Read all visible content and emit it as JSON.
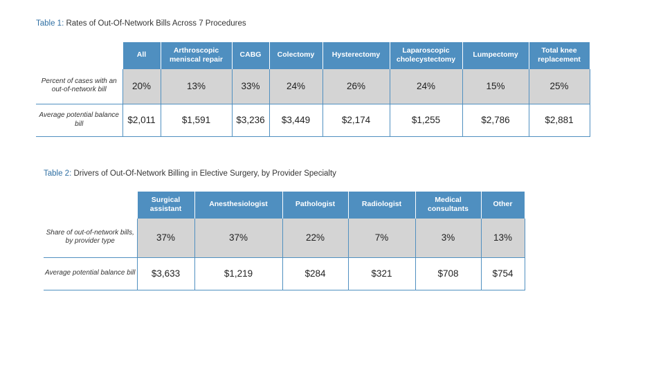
{
  "table1": {
    "caption_num": "Table 1:",
    "caption_text": "Rates of Out-Of-Network Bills Across 7 Procedures",
    "headers": [
      "All",
      "Arthroscopic meniscal repair",
      "CABG",
      "Colectomy",
      "Hysterectomy",
      "Laparoscopic cholecystectomy",
      "Lumpectomy",
      "Total knee replacement"
    ],
    "rows": [
      {
        "label": "Percent of cases with an out-of-network bill",
        "values": [
          "20%",
          "13%",
          "33%",
          "24%",
          "26%",
          "24%",
          "15%",
          "25%"
        ]
      },
      {
        "label": "Average potential balance bill",
        "values": [
          "$2,011",
          "$1,591",
          "$3,236",
          "$3,449",
          "$2,174",
          "$1,255",
          "$2,786",
          "$2,881"
        ]
      }
    ]
  },
  "table2": {
    "caption_num": "Table 2:",
    "caption_text": "Drivers of Out-Of-Network Billing in Elective Surgery, by Provider Specialty",
    "headers": [
      "Surgical assistant",
      "Anesthesiologist",
      "Pathologist",
      "Radiologist",
      "Medical consultants",
      "Other"
    ],
    "rows": [
      {
        "label": "Share of out-of-network bills, by provider type",
        "values": [
          "37%",
          "37%",
          "22%",
          "7%",
          "3%",
          "13%"
        ]
      },
      {
        "label": "Average potential balance bill",
        "values": [
          "$3,633",
          "$1,219",
          "$284",
          "$321",
          "$708",
          "$754"
        ]
      }
    ]
  },
  "colors": {
    "header_bg": "#4f8fc0",
    "shaded_row": "#d4d4d4",
    "caption_number": "#2f6fa3"
  }
}
